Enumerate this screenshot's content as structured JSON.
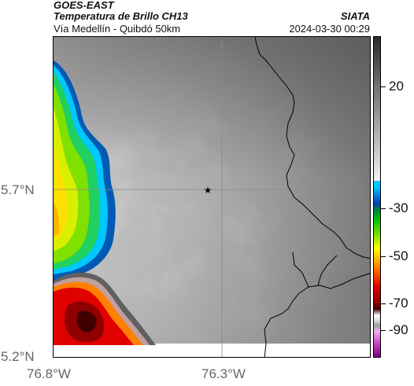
{
  "header": {
    "agency": "GOES-EAST",
    "product": "Temperatura de Brillo CH13",
    "source": "SIATA",
    "location": "Vía Medellín - Quibdó 50km",
    "timestamp": "2024-03-30 00:29"
  },
  "map": {
    "lat_labels": [
      "5.7°N",
      "5.2°N"
    ],
    "lon_labels": [
      "76.8°W",
      "76.3°W"
    ],
    "center_marker": "star-icon",
    "border_color": "#000000",
    "gridline_color": "#8a8a8a"
  },
  "colorbar": {
    "labels": [
      "20",
      "-30",
      "-50",
      "-70",
      "-90"
    ],
    "colors": {
      "warm_gray_top": "#2a2a2a",
      "warm_gray_bottom": "#f2f2f2",
      "cyan": "#00c8ff",
      "blue": "#0040c0",
      "green": "#00c000",
      "yellow": "#ffff00",
      "orange": "#ff8000",
      "red": "#e00000",
      "dark_red": "#400000",
      "magenta": "#c040c0"
    }
  }
}
